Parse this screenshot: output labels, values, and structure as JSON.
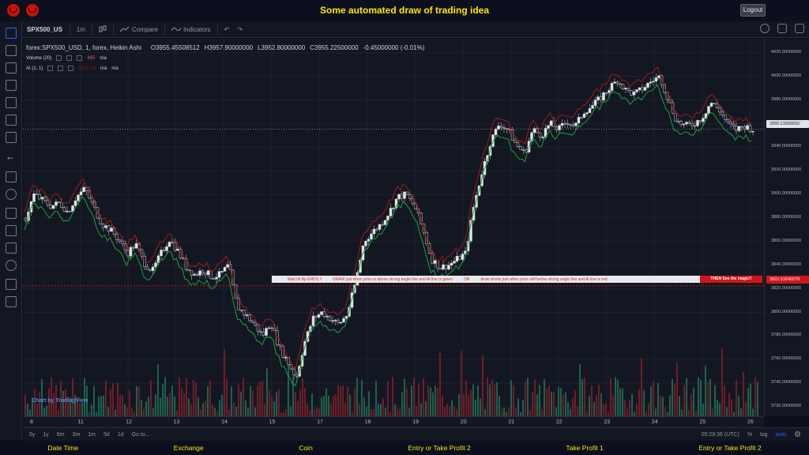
{
  "header": {
    "title": "Some automated draw of trading idea",
    "logout_label": "Logout"
  },
  "toolbar": {
    "symbol": "SPX500_US",
    "interval": "1m",
    "compare_label": "Compare",
    "indicators_label": "Indicators"
  },
  "legend": {
    "main": "forex:SPX500_USD, 1, forex, Heikin Ashi",
    "open": "O3955.45508512",
    "high": "H3957.90000000",
    "low": "L3952.80000000",
    "close": "C3955.22500000",
    "change": "-0.45000000 (-0.01%)",
    "volume_label": "Volume (20)",
    "volume_value": "465",
    "volume_na": "n/a",
    "ai_label": "AI (1, 1)",
    "ai_value": "3931.04",
    "ai_na1": "n/a",
    "ai_na2": "n/a"
  },
  "price_scale": {
    "ticks": [
      "4020.00000000",
      "4000.00000000",
      "3980.00000000",
      "3960.00000000",
      "3940.00000000",
      "3920.00000000",
      "3900.00000000",
      "3880.00000000",
      "3860.00000000",
      "3840.00000000",
      "3820.00000000",
      "3800.00000000",
      "3780.00000000",
      "3760.00000000",
      "3740.00000000",
      "3720.00000000"
    ],
    "current_price": "3955.23855000",
    "line_price": "3822.53240279"
  },
  "time_scale": {
    "labels": [
      "8",
      "11",
      "12",
      "13",
      "14",
      "15",
      "17",
      "18",
      "19",
      "20",
      "21",
      "22",
      "23",
      "24",
      "25",
      "26"
    ]
  },
  "banner": {
    "text1": "Wait till flip ENDS !!",
    "text2": "DRAW just when  price is above strong angle line and AI line is green",
    "text3": "OR",
    "text4": "draw shorts just when price still below strong angle line and AI line is red",
    "cta": "THEN See the magic!!"
  },
  "watermark": "Chart by TradingView",
  "bottom_bar": {
    "ranges": [
      "5y",
      "1y",
      "6m",
      "3m",
      "1m",
      "5d",
      "1d"
    ],
    "goto": "Go to...",
    "clock": "05:29:36 (UTC)",
    "pct": "%",
    "log": "log",
    "auto": "auto"
  },
  "footer": {
    "items": [
      "Date Time",
      "Exchange",
      "Coin",
      "Entry or Take Profit 2",
      "Take Profit 1",
      "Entry or Take Profit 2"
    ]
  },
  "chart_data": {
    "type": "candlestick",
    "title": "forex:SPX500_USD, 1, forex, Heikin Ashi",
    "ylim": [
      3712,
      4032
    ],
    "x_labels": [
      "8",
      "11",
      "12",
      "13",
      "14",
      "15",
      "17",
      "18",
      "19",
      "20",
      "21",
      "22",
      "23",
      "24",
      "25",
      "26"
    ],
    "close_path": [
      3880,
      3900,
      3895,
      3890,
      3893,
      3885,
      3898,
      3905,
      3890,
      3875,
      3870,
      3862,
      3850,
      3858,
      3842,
      3835,
      3850,
      3862,
      3852,
      3838,
      3832,
      3836,
      3830,
      3832,
      3840,
      3805,
      3798,
      3790,
      3780,
      3792,
      3770,
      3758,
      3745,
      3775,
      3795,
      3800,
      3795,
      3790,
      3798,
      3825,
      3860,
      3868,
      3875,
      3885,
      3898,
      3900,
      3890,
      3870,
      3845,
      3838,
      3840,
      3845,
      3850,
      3890,
      3920,
      3945,
      3960,
      3955,
      3942,
      3935,
      3955,
      3950,
      3960,
      3955,
      3962,
      3958,
      3970,
      3975,
      3982,
      3990,
      3997,
      3988,
      3985,
      3990,
      3996,
      4000,
      3980,
      3962,
      3958,
      3960,
      3965,
      3978,
      3972,
      3960,
      3955,
      3958,
      3955
    ]
  }
}
